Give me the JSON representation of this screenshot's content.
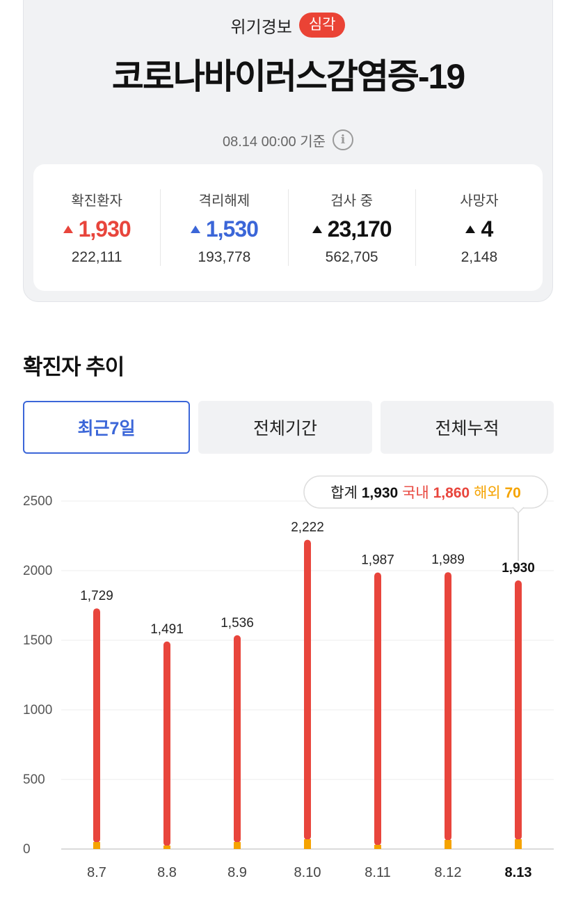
{
  "header": {
    "alert_label": "위기경보",
    "alert_level": "심각",
    "title": "코로나바이러스감염증-19",
    "reference_time": "08.14 00:00 기준"
  },
  "stats": [
    {
      "label": "확진환자",
      "change": "1,930",
      "total": "222,111",
      "color": "red"
    },
    {
      "label": "격리해제",
      "change": "1,530",
      "total": "193,778",
      "color": "blue"
    },
    {
      "label": "검사 중",
      "change": "23,170",
      "total": "562,705",
      "color": "black"
    },
    {
      "label": "사망자",
      "change": "4",
      "total": "2,148",
      "color": "black"
    }
  ],
  "section_title": "확진자 추이",
  "tabs": [
    {
      "label": "최근7일",
      "selected": true
    },
    {
      "label": "전체기간",
      "selected": false
    },
    {
      "label": "전체누적",
      "selected": false
    }
  ],
  "tooltip": {
    "sum_label": "합계",
    "sum_value": "1,930",
    "domestic_label": "국내",
    "domestic_value": "1,860",
    "overseas_label": "해외",
    "overseas_value": "70"
  },
  "colors": {
    "domestic": "#e8453c",
    "overseas": "#f5a300",
    "accent": "#3b66d8"
  },
  "chart_data": {
    "type": "bar",
    "stacked": true,
    "categories": [
      "8.7",
      "8.8",
      "8.9",
      "8.10",
      "8.11",
      "8.12",
      "8.13"
    ],
    "series": [
      {
        "name": "국내",
        "values": [
          1679,
          1466,
          1486,
          2152,
          1957,
          1924,
          1860
        ]
      },
      {
        "name": "해외",
        "values": [
          50,
          25,
          50,
          70,
          30,
          65,
          70
        ]
      }
    ],
    "totals": [
      1729,
      1491,
      1536,
      2222,
      1987,
      1989,
      1930
    ],
    "total_labels": [
      "1,729",
      "1,491",
      "1,536",
      "2,222",
      "1,987",
      "1,989",
      "1,930"
    ],
    "yticks": [
      0,
      500,
      1000,
      1500,
      2000,
      2500
    ],
    "ylim": [
      0,
      2500
    ],
    "selected_index": 6,
    "grid": true
  }
}
